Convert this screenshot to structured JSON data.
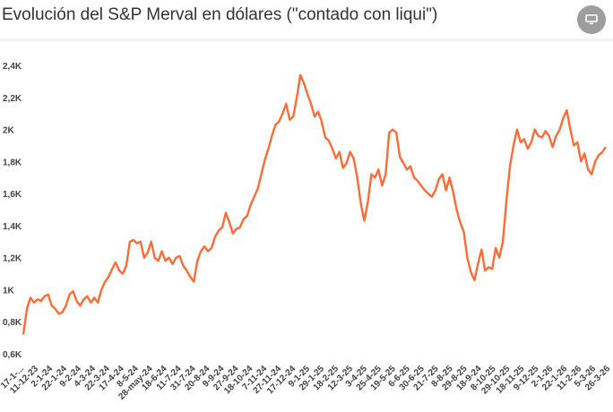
{
  "header": {
    "title": "Evolución del S&P Merval en dólares (\"contado con liqui\")",
    "icon": "monitor-icon"
  },
  "chart_data": {
    "type": "line",
    "title": "Evolución del S&P Merval en dólares (\"contado con liqui\")",
    "xlabel": "",
    "ylabel": "",
    "ylim": [
      600,
      2400
    ],
    "grid": false,
    "line_color": "#ff6b35",
    "y_ticks": [
      {
        "value": 2400,
        "label": "2,4K"
      },
      {
        "value": 2200,
        "label": "2,2K"
      },
      {
        "value": 2000,
        "label": "2K"
      },
      {
        "value": 1800,
        "label": "1,8K"
      },
      {
        "value": 1600,
        "label": "1,6K"
      },
      {
        "value": 1400,
        "label": "1,4K"
      },
      {
        "value": 1200,
        "label": "1,2K"
      },
      {
        "value": 1000,
        "label": "1K"
      },
      {
        "value": 800,
        "label": "0,8K"
      },
      {
        "value": 600,
        "label": "0,6K"
      }
    ],
    "x_tick_labels": [
      "17-1-...",
      "11-12-23",
      "2-1-24",
      "22-1-24",
      "9-2-24",
      "4-3-24",
      "22-3-24",
      "17-4-24",
      "8-5-24",
      "28-may-24",
      "18-6-24",
      "11-7-24",
      "31-7-24",
      "20-8-24",
      "9-9-24",
      "27-9-24",
      "18-10-24",
      "7-11-24",
      "27-11-24",
      "17-12-24",
      "9-1-25",
      "29-1-25",
      "18-2-25",
      "12-3-25",
      "3-4-25",
      "25-4-25",
      "19-5-25",
      "6-6-25",
      "30-6-25",
      "21-7-25",
      "8-8-25",
      "29-8-25",
      "18-9-24",
      "8-10-25",
      "29-10-25",
      "18-11-25",
      "9-12-25",
      "2-1-26",
      "22-1-26",
      "11-2-26",
      "5-3-26",
      "26-3-26"
    ],
    "values": [
      720,
      880,
      950,
      920,
      940,
      930,
      960,
      970,
      900,
      880,
      850,
      860,
      900,
      970,
      990,
      930,
      900,
      940,
      960,
      920,
      950,
      920,
      1000,
      1050,
      1080,
      1130,
      1170,
      1120,
      1100,
      1150,
      1300,
      1310,
      1290,
      1300,
      1200,
      1230,
      1300,
      1200,
      1180,
      1240,
      1180,
      1200,
      1160,
      1200,
      1210,
      1150,
      1120,
      1080,
      1050,
      1180,
      1240,
      1270,
      1240,
      1260,
      1330,
      1370,
      1390,
      1480,
      1420,
      1350,
      1380,
      1390,
      1440,
      1460,
      1530,
      1580,
      1630,
      1720,
      1810,
      1880,
      1960,
      2030,
      2050,
      2100,
      2160,
      2060,
      2080,
      2200,
      2340,
      2290,
      2220,
      2160,
      2080,
      2110,
      2050,
      1950,
      1930,
      1880,
      1820,
      1860,
      1760,
      1790,
      1860,
      1820,
      1700,
      1540,
      1430,
      1550,
      1720,
      1700,
      1750,
      1650,
      1720,
      1980,
      2000,
      1980,
      1830,
      1790,
      1750,
      1770,
      1700,
      1680,
      1650,
      1620,
      1600,
      1580,
      1620,
      1690,
      1720,
      1620,
      1700,
      1610,
      1500,
      1420,
      1360,
      1200,
      1110,
      1060,
      1160,
      1250,
      1120,
      1140,
      1130,
      1260,
      1200,
      1300,
      1550,
      1770,
      1900,
      2000,
      1920,
      1940,
      1880,
      1920,
      2000,
      1960,
      1950,
      1990,
      1960,
      1890,
      1960,
      2000,
      2070,
      2120,
      2000,
      1900,
      1920,
      1800,
      1850,
      1750,
      1720,
      1800,
      1840,
      1860,
      1890
    ]
  }
}
